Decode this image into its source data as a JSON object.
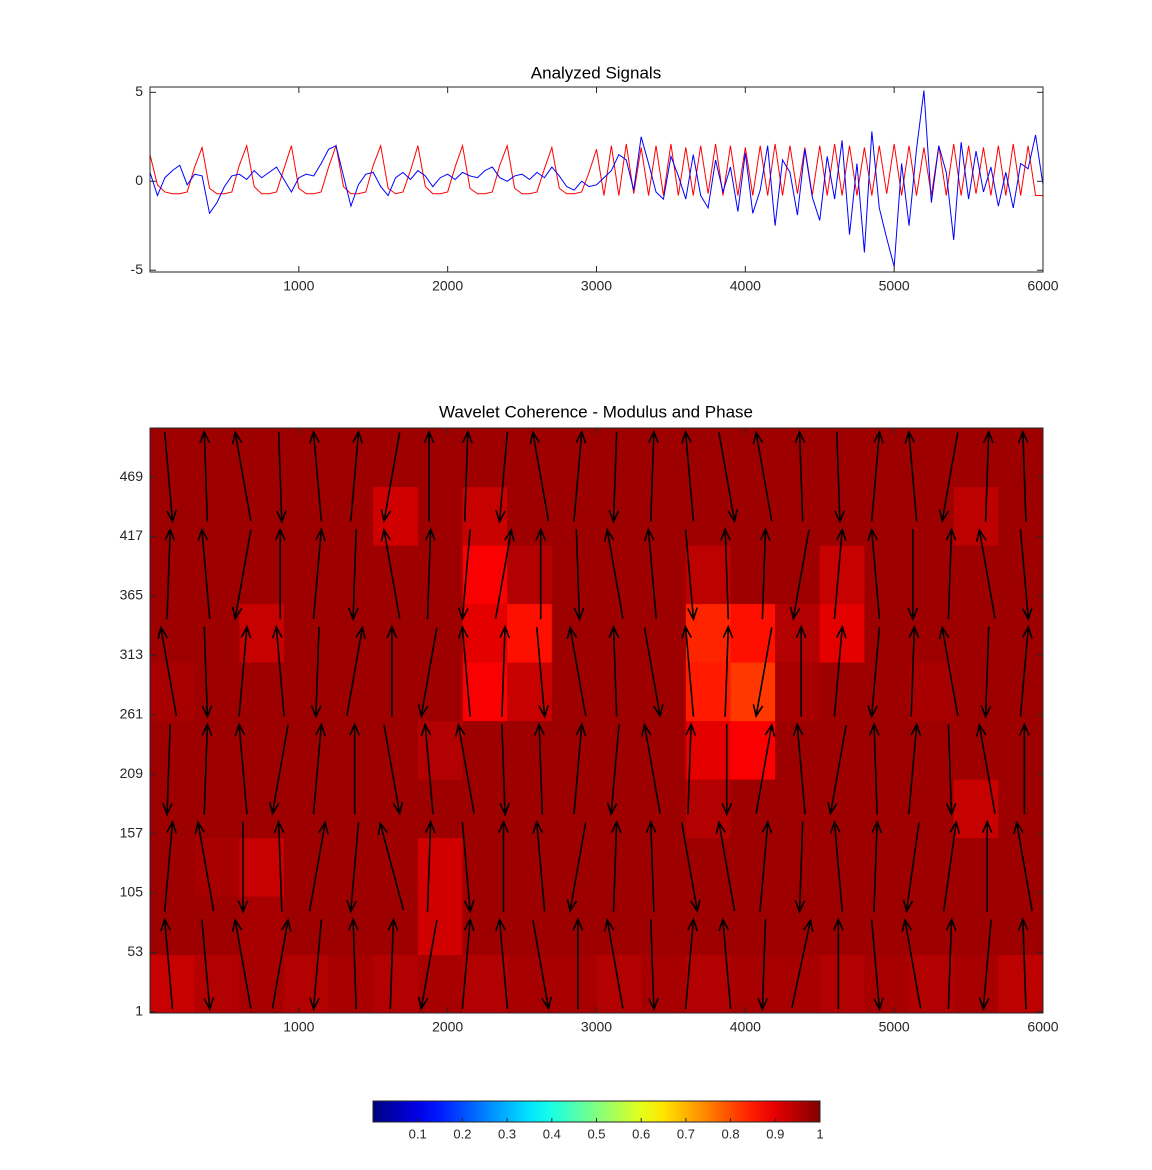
{
  "chart_data": [
    {
      "type": "line",
      "title": "Analyzed Signals",
      "x": [
        0,
        50,
        100,
        150,
        200,
        250,
        300,
        350,
        400,
        450,
        500,
        550,
        600,
        650,
        700,
        750,
        800,
        850,
        900,
        950,
        1000,
        1050,
        1100,
        1150,
        1200,
        1250,
        1300,
        1350,
        1400,
        1450,
        1500,
        1550,
        1600,
        1650,
        1700,
        1750,
        1800,
        1850,
        1900,
        1950,
        2000,
        2050,
        2100,
        2150,
        2200,
        2250,
        2300,
        2350,
        2400,
        2450,
        2500,
        2550,
        2600,
        2650,
        2700,
        2750,
        2800,
        2850,
        2900,
        2950,
        3000,
        3050,
        3100,
        3150,
        3200,
        3250,
        3300,
        3350,
        3400,
        3450,
        3500,
        3550,
        3600,
        3650,
        3700,
        3750,
        3800,
        3850,
        3900,
        3950,
        4000,
        4050,
        4100,
        4150,
        4200,
        4250,
        4300,
        4350,
        4400,
        4450,
        4500,
        4550,
        4600,
        4650,
        4700,
        4750,
        4800,
        4850,
        4900,
        4950,
        5000,
        5050,
        5100,
        5150,
        5200,
        5250,
        5300,
        5350,
        5400,
        5450,
        5500,
        5550,
        5600,
        5650,
        5700,
        5750,
        5800,
        5850,
        5900,
        5950,
        6000
      ],
      "series": [
        {
          "color": "#ff0000",
          "values": [
            1.5,
            -0.2,
            -0.6,
            -0.7,
            -0.7,
            -0.6,
            0.8,
            1.9,
            -0.4,
            -0.7,
            -0.7,
            -0.6,
            0.9,
            2.0,
            -0.3,
            -0.7,
            -0.7,
            -0.6,
            0.7,
            2.0,
            -0.4,
            -0.7,
            -0.7,
            -0.6,
            0.8,
            2.0,
            -0.3,
            -0.7,
            -0.7,
            -0.6,
            0.9,
            2.0,
            -0.4,
            -0.7,
            -0.6,
            0.6,
            2.0,
            -0.3,
            -0.7,
            -0.7,
            -0.6,
            0.8,
            2.0,
            -0.4,
            -0.7,
            -0.7,
            -0.6,
            0.9,
            2.0,
            -0.4,
            -0.7,
            -0.7,
            -0.6,
            0.7,
            1.9,
            -0.4,
            -0.7,
            -0.7,
            -0.6,
            0.5,
            1.8,
            -0.8,
            2.0,
            -0.8,
            2.1,
            -0.7,
            1.9,
            -0.8,
            2.0,
            -0.8,
            2.1,
            -0.8,
            1.9,
            -0.8,
            2.0,
            -0.7,
            2.1,
            -0.8,
            2.0,
            -0.8,
            1.9,
            -0.8,
            2.0,
            -0.8,
            2.1,
            -0.8,
            2.0,
            -0.7,
            1.9,
            -0.8,
            2.0,
            -0.8,
            2.1,
            -0.8,
            2.0,
            -0.8,
            1.9,
            -0.8,
            2.0,
            -0.7,
            2.1,
            -0.8,
            2.0,
            -0.8,
            1.9,
            -0.8,
            2.0,
            -0.8,
            2.1,
            -0.8,
            2.0,
            -0.7,
            1.9,
            -0.8,
            2.0,
            -0.8,
            2.1,
            -0.8,
            2.0,
            -0.8,
            -0.8
          ]
        },
        {
          "color": "#0000ff",
          "values": [
            0.5,
            -0.8,
            0.2,
            0.6,
            0.9,
            -0.2,
            0.4,
            0.3,
            -1.8,
            -1.2,
            -0.3,
            0.3,
            0.4,
            0.1,
            0.6,
            0.2,
            0.5,
            0.8,
            0.1,
            -0.6,
            0.2,
            0.4,
            0.3,
            1.0,
            1.8,
            2.0,
            0.3,
            -1.4,
            -0.2,
            0.4,
            0.5,
            -0.3,
            -0.8,
            0.2,
            0.5,
            0.1,
            0.6,
            0.3,
            -0.3,
            0.2,
            0.4,
            0.1,
            0.5,
            0.3,
            0.2,
            0.6,
            0.8,
            0.2,
            0.0,
            0.3,
            0.4,
            0.1,
            0.5,
            0.2,
            0.8,
            0.3,
            -0.3,
            -0.5,
            0.0,
            -0.3,
            -0.2,
            0.2,
            0.6,
            1.5,
            1.2,
            -0.5,
            2.5,
            1.0,
            -0.6,
            -1.0,
            1.4,
            0.3,
            -1.0,
            1.5,
            -0.8,
            -1.5,
            1.2,
            -0.6,
            0.8,
            -1.7,
            1.6,
            -1.8,
            -0.5,
            2.0,
            -2.5,
            1.2,
            0.5,
            -1.9,
            1.8,
            -0.9,
            -2.2,
            1.4,
            -1.0,
            2.3,
            -3.0,
            1.0,
            -4.0,
            2.8,
            -1.5,
            -3.2,
            -4.8,
            1.0,
            -2.5,
            1.8,
            5.1,
            -1.2,
            2.0,
            0.5,
            -3.3,
            2.2,
            -1.0,
            1.7,
            -0.6,
            0.8,
            -1.4,
            0.5,
            -1.5,
            1.0,
            0.7,
            2.6,
            -0.2
          ]
        }
      ],
      "xlim": [
        0,
        6000
      ],
      "xticks": [
        1000,
        2000,
        3000,
        4000,
        5000,
        6000
      ],
      "ylim": [
        -5.1,
        5.3
      ],
      "yticks": [
        -5,
        0,
        5
      ]
    },
    {
      "type": "heatmap",
      "title": "Wavelet Coherence - Modulus and Phase",
      "xlim": [
        0,
        6000
      ],
      "xticks": [
        1000,
        2000,
        3000,
        4000,
        5000,
        6000
      ],
      "ylim": [
        0,
        512
      ],
      "yticks": [
        1,
        53,
        105,
        157,
        209,
        261,
        313,
        365,
        417,
        469
      ],
      "colormap": "jet",
      "clim": [
        0,
        1
      ],
      "colorbar_ticks": [
        0.1,
        0.2,
        0.3,
        0.4,
        0.5,
        0.6,
        0.7,
        0.8,
        0.9,
        1
      ],
      "z": [
        [
          0.93,
          0.95,
          0.96,
          0.95,
          0.96,
          0.95,
          0.96,
          0.95,
          0.96,
          0.96,
          0.95,
          0.96,
          0.95,
          0.96,
          0.96,
          0.95,
          0.96,
          0.95,
          0.96,
          0.94
        ],
        [
          0.97,
          0.97,
          0.96,
          0.97,
          0.97,
          0.97,
          0.92,
          0.97,
          0.97,
          0.97,
          0.97,
          0.97,
          0.97,
          0.97,
          0.97,
          0.97,
          0.97,
          0.97,
          0.97,
          0.97
        ],
        [
          0.97,
          0.96,
          0.93,
          0.97,
          0.97,
          0.97,
          0.92,
          0.97,
          0.97,
          0.97,
          0.97,
          0.97,
          0.97,
          0.97,
          0.97,
          0.97,
          0.97,
          0.97,
          0.97,
          0.97
        ],
        [
          0.97,
          0.97,
          0.97,
          0.97,
          0.97,
          0.97,
          0.97,
          0.97,
          0.97,
          0.97,
          0.97,
          0.97,
          0.95,
          0.97,
          0.97,
          0.97,
          0.97,
          0.97,
          0.93,
          0.97
        ],
        [
          0.97,
          0.97,
          0.97,
          0.97,
          0.97,
          0.97,
          0.95,
          0.97,
          0.97,
          0.97,
          0.97,
          0.97,
          0.9,
          0.88,
          0.97,
          0.97,
          0.97,
          0.97,
          0.97,
          0.97
        ],
        [
          0.96,
          0.97,
          0.97,
          0.97,
          0.97,
          0.97,
          0.97,
          0.88,
          0.93,
          0.97,
          0.97,
          0.97,
          0.85,
          0.82,
          0.96,
          0.97,
          0.97,
          0.96,
          0.97,
          0.97
        ],
        [
          0.97,
          0.97,
          0.93,
          0.97,
          0.97,
          0.97,
          0.97,
          0.9,
          0.86,
          0.97,
          0.97,
          0.97,
          0.84,
          0.86,
          0.95,
          0.9,
          0.97,
          0.97,
          0.97,
          0.97
        ],
        [
          0.97,
          0.97,
          0.97,
          0.97,
          0.97,
          0.97,
          0.97,
          0.88,
          0.95,
          0.97,
          0.97,
          0.97,
          0.94,
          0.97,
          0.97,
          0.93,
          0.97,
          0.97,
          0.97,
          0.97
        ],
        [
          0.97,
          0.97,
          0.97,
          0.97,
          0.97,
          0.92,
          0.97,
          0.93,
          0.97,
          0.97,
          0.97,
          0.97,
          0.97,
          0.97,
          0.97,
          0.97,
          0.97,
          0.97,
          0.94,
          0.97
        ],
        [
          0.97,
          0.97,
          0.97,
          0.97,
          0.97,
          0.97,
          0.97,
          0.97,
          0.97,
          0.97,
          0.97,
          0.97,
          0.97,
          0.97,
          0.97,
          0.97,
          0.97,
          0.97,
          0.97,
          0.97
        ]
      ],
      "phase": [
        [
          95,
          -85,
          100,
          80,
          -95,
          92,
          88,
          -100,
          85,
          95,
          -80,
          90,
          100,
          -88,
          85,
          95,
          -92,
          78,
          90,
          -85,
          100,
          88,
          -95,
          92
        ],
        [
          85,
          100,
          -90,
          92,
          80,
          -95,
          105,
          88,
          -85,
          90,
          95,
          -100,
          88,
          92,
          -80,
          100,
          85,
          -92,
          95,
          88,
          -98,
          82,
          90,
          100
        ],
        [
          -92,
          88,
          95,
          -100,
          85,
          90,
          -80,
          95,
          100,
          -88,
          92,
          85,
          -95,
          100,
          88,
          -90,
          80,
          95,
          -100,
          92,
          85,
          -88,
          100,
          90
        ],
        [
          100,
          -88,
          85,
          95,
          -92,
          80,
          90,
          -100,
          95,
          88,
          -85,
          100,
          92,
          -80,
          95,
          88,
          -100,
          90,
          85,
          -95,
          88,
          100,
          -92,
          85
        ],
        [
          88,
          95,
          -100,
          90,
          85,
          -92,
          100,
          88,
          -95,
          80,
          90,
          -88,
          100,
          95,
          -85,
          92,
          88,
          -100,
          85,
          95,
          -90,
          88,
          100,
          -85
        ],
        [
          -85,
          92,
          100,
          -88,
          95,
          85,
          -100,
          90,
          88,
          -95,
          100,
          85,
          -92,
          88,
          95,
          -80,
          100,
          92,
          -88,
          85,
          95,
          -100,
          88,
          92
        ]
      ]
    }
  ]
}
